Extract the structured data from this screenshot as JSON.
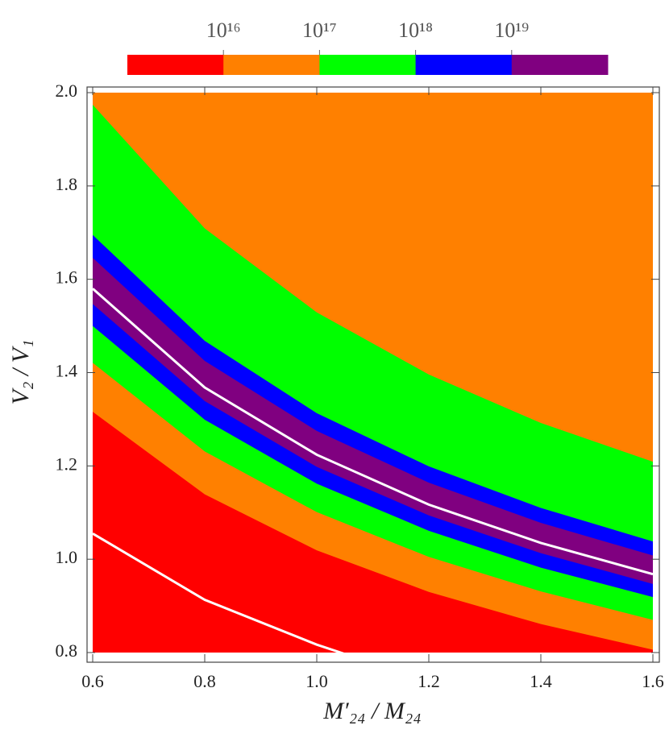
{
  "chart_data": {
    "type": "contour",
    "xlabel": "M′₂₄ / M₂₄",
    "ylabel": "V₂ / V₁",
    "xlim": [
      0.6,
      1.6
    ],
    "ylim": [
      0.8,
      2.0
    ],
    "xticks": [
      0.6,
      0.8,
      {
        "value": 1,
        "label": "1.0"
      },
      1.2,
      1.4,
      1.6
    ],
    "yticks": [
      0.8,
      {
        "value": 1,
        "label": "1.0"
      },
      1.2,
      1.4,
      1.6,
      1.8,
      {
        "value": 2,
        "label": "2.0"
      }
    ],
    "background": "#ff8000",
    "x": [
      0.6,
      0.8,
      1.0,
      1.2,
      1.4,
      1.6
    ],
    "contours": [
      {
        "fill_below": "#00ff00",
        "y": [
          1.974,
          1.709,
          1.529,
          1.396,
          1.292,
          1.209
        ]
      },
      {
        "fill_below": "#0000ff",
        "y": [
          1.695,
          1.468,
          1.313,
          1.199,
          1.11,
          1.038
        ]
      },
      {
        "fill_below": "#800080",
        "y": [
          1.646,
          1.425,
          1.275,
          1.164,
          1.078,
          1.008
        ]
      },
      {
        "fill_below": "#0000ff",
        "y": [
          1.547,
          1.339,
          1.198,
          1.094,
          1.013,
          0.947
        ]
      },
      {
        "fill_below": "#00ff00",
        "y": [
          1.5,
          1.299,
          1.162,
          1.061,
          0.982,
          0.919
        ]
      },
      {
        "fill_below": "#ff8000",
        "y": [
          1.421,
          1.231,
          1.101,
          1.005,
          0.931,
          0.87
        ]
      },
      {
        "fill_below": "#ff0000",
        "y": [
          1.316,
          1.139,
          1.019,
          0.93,
          0.861,
          0.806
        ]
      }
    ],
    "lines": [
      {
        "color": "#ffffff",
        "x": [
          0.6,
          0.8,
          1.0,
          1.2,
          1.4,
          1.6
        ],
        "y": [
          1.58,
          1.368,
          1.224,
          1.117,
          1.035,
          0.968
        ]
      },
      {
        "color": "#ffffff",
        "x": [
          0.6,
          0.8,
          1.0,
          1.05
        ],
        "y": [
          1.055,
          0.913,
          0.817,
          0.797
        ]
      }
    ],
    "colorbar": {
      "log_scale": true,
      "lim": [
        1000000000000000.0,
        1e+20
      ],
      "colors": [
        "#ff0000",
        "#ff8000",
        "#00ff00",
        "#0000ff",
        "#800080"
      ],
      "ticks": [
        {
          "value": 1e+16,
          "label": "10¹⁶"
        },
        {
          "value": 1e+17,
          "label": "10¹⁷"
        },
        {
          "value": 1e+18,
          "label": "10¹⁸"
        },
        {
          "value": 1e+19,
          "label": "10¹⁹"
        }
      ]
    }
  }
}
